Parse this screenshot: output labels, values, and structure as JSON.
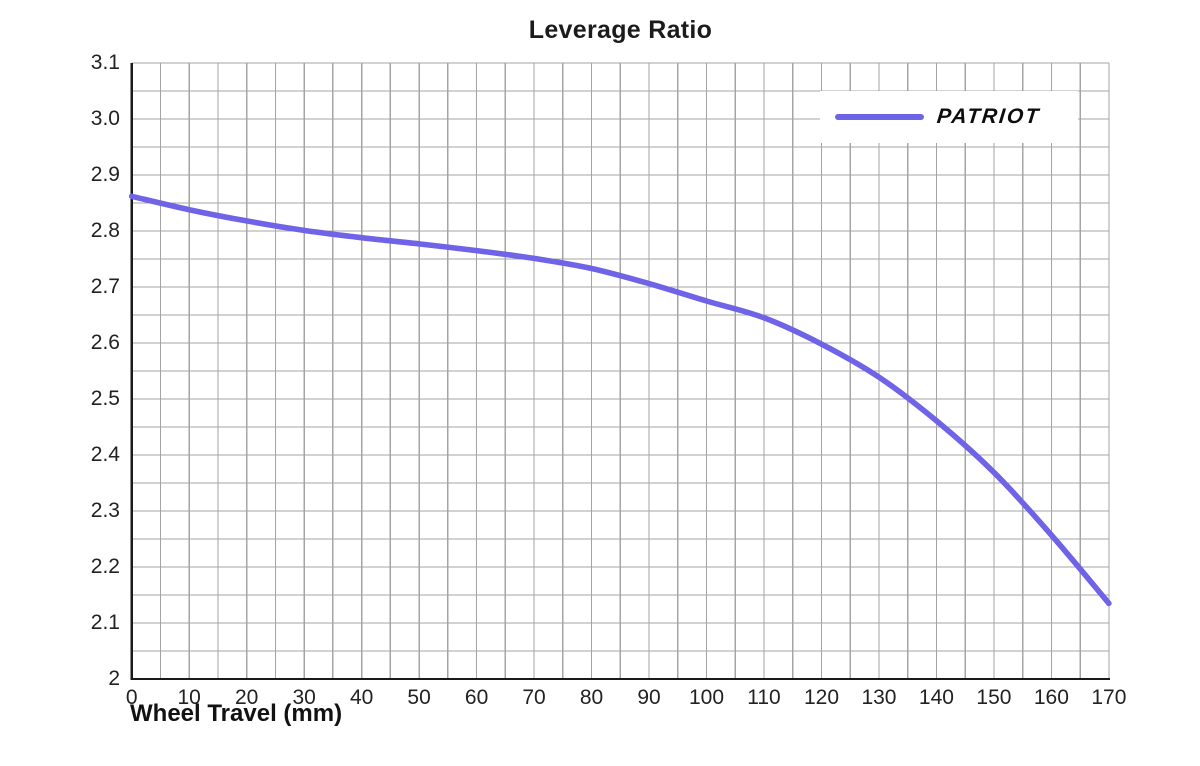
{
  "chart_data": {
    "type": "line",
    "title": "Leverage Ratio",
    "xlabel": "Wheel Travel (mm)",
    "ylabel": "",
    "xlim": [
      0,
      170
    ],
    "ylim": [
      2.0,
      3.1
    ],
    "x_minor_step": 5,
    "y_minor_step": 0.05,
    "grid": true,
    "legend_position": "top-right",
    "x_ticks": [
      {
        "label": "0",
        "value": 0
      },
      {
        "label": "10",
        "value": 10
      },
      {
        "label": "20",
        "value": 20
      },
      {
        "label": "30",
        "value": 30
      },
      {
        "label": "40",
        "value": 40
      },
      {
        "label": "50",
        "value": 50
      },
      {
        "label": "60",
        "value": 60
      },
      {
        "label": "70",
        "value": 70
      },
      {
        "label": "80",
        "value": 80
      },
      {
        "label": "90",
        "value": 90
      },
      {
        "label": "100",
        "value": 100
      },
      {
        "label": "110",
        "value": 110
      },
      {
        "label": "120",
        "value": 120
      },
      {
        "label": "130",
        "value": 130
      },
      {
        "label": "140",
        "value": 140
      },
      {
        "label": "150",
        "value": 150
      },
      {
        "label": "160",
        "value": 160
      },
      {
        "label": "170",
        "value": 170
      }
    ],
    "y_ticks": [
      {
        "label": "3.1",
        "value": 3.1
      },
      {
        "label": "3.0",
        "value": 3.0
      },
      {
        "label": "2.9",
        "value": 2.9
      },
      {
        "label": "2.8",
        "value": 2.8
      },
      {
        "label": "2.7",
        "value": 2.7
      },
      {
        "label": "2.6",
        "value": 2.6
      },
      {
        "label": "2.5",
        "value": 2.5
      },
      {
        "label": "2.4",
        "value": 2.4
      },
      {
        "label": "2.3",
        "value": 2.3
      },
      {
        "label": "2.2",
        "value": 2.2
      },
      {
        "label": "2.1",
        "value": 2.1
      },
      {
        "label": "2",
        "value": 2.0
      }
    ],
    "series": [
      {
        "name": "PATRIOT",
        "color": "#6f63e8",
        "x": [
          0,
          10,
          20,
          30,
          40,
          50,
          60,
          70,
          80,
          90,
          100,
          110,
          120,
          130,
          140,
          150,
          160,
          170
        ],
        "values": [
          2.862,
          2.838,
          2.818,
          2.801,
          2.788,
          2.777,
          2.765,
          2.751,
          2.733,
          2.706,
          2.675,
          2.645,
          2.598,
          2.539,
          2.461,
          2.369,
          2.257,
          2.135
        ]
      }
    ],
    "colors": {
      "grid": "#a4a4a4",
      "axis": "#1a1a1a",
      "text": "#222222",
      "title": "#1b1b1b",
      "legend_background": "#ffffff"
    }
  }
}
